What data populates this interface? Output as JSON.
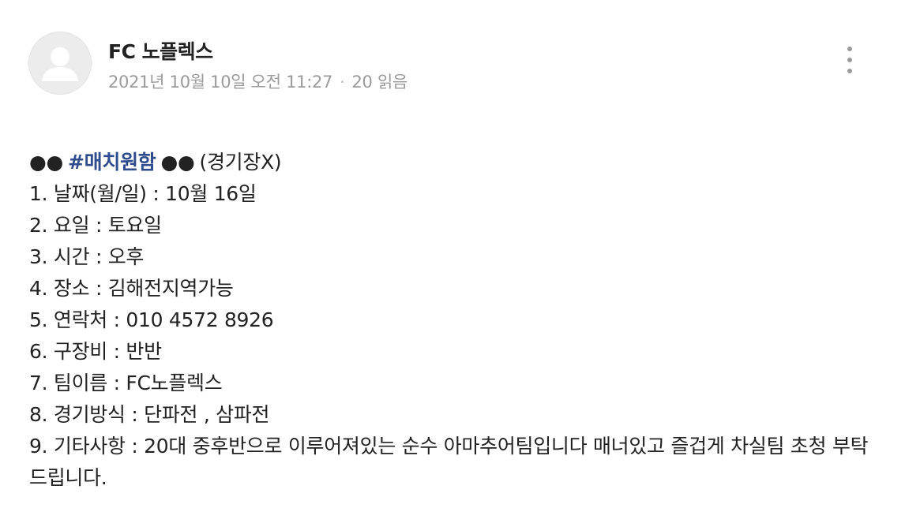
{
  "header": {
    "author": "FC 노플렉스",
    "datetime": "2021년 10월 10일 오전 11:27",
    "separator": "·",
    "views": "20 읽음"
  },
  "icons": {
    "avatar": "default-user-avatar-icon",
    "more": "more-vertical-icon"
  },
  "post": {
    "headline": {
      "bullets_left": "●●",
      "hashtag": "#매치원함",
      "bullets_right": "●●",
      "note": "(경기장X)"
    },
    "lines": [
      "1. 날짜(월/일) :  10월 16일",
      "2. 요일 :  토요일",
      "3. 시간 : 오후",
      "4. 장소 : 김해전지역가능",
      "5. 연락처 : 010 4572 8926",
      "6. 구장비 : 반반",
      "7. 팀이름 : FC노플렉스",
      "8. 경기방식 :  단파전 , 삼파전",
      "9. 기타사항 :  20대 중후반으로 이루어져있는 순수 아마추어팀입니다 매너있고 즐겁게 차실팀 초청 부탁 드립니다."
    ]
  },
  "colors": {
    "hashtag": "#2f4d8e",
    "text": "#222222",
    "meta": "#9a9a9a"
  }
}
